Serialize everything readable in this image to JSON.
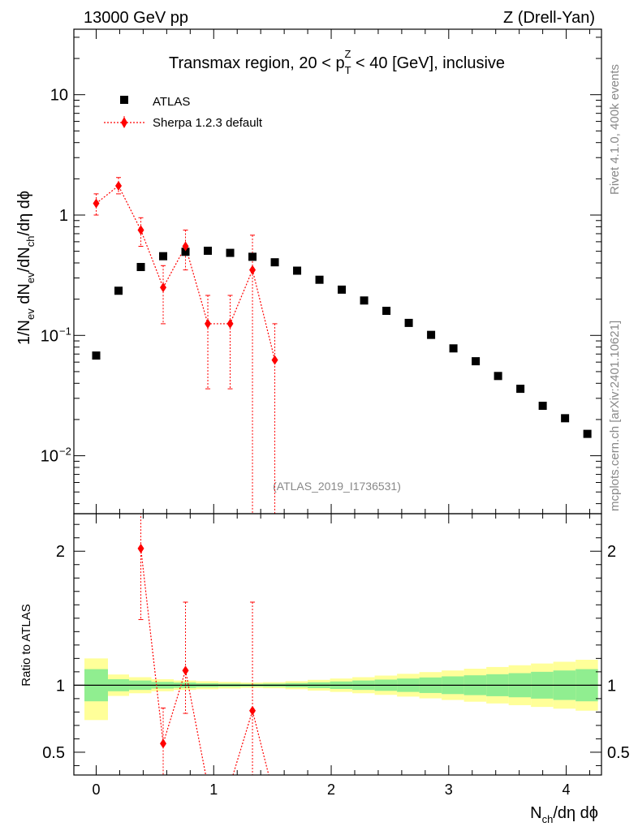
{
  "header": {
    "left": "13000 GeV pp",
    "right": "Z (Drell-Yan)"
  },
  "side_text": {
    "rivet": "Rivet 4.1.0,  400k events",
    "mcplots": "mcplots.cern.ch [arXiv:2401.10621]"
  },
  "analysis_id": "(ATLAS_2019_I1736531)",
  "title": {
    "pre": "Transmax region, 20 < p",
    "sub": "T",
    "sup": "Z",
    "post": " < 40 [GeV], inclusive"
  },
  "axes": {
    "ylabel_main": "1/N_ev dN_ev/dN_ch/dη dϕ",
    "ylabel_main_parts": [
      "1/N",
      "ev",
      " dN",
      "ev",
      "/dN",
      "ch",
      "/dη dϕ"
    ],
    "ylabel_ratio": "Ratio to ATLAS",
    "xlabel": "N_ch/dη dϕ",
    "xlabel_parts": [
      "N",
      "ch",
      "/dη dϕ"
    ]
  },
  "chart_data": {
    "type": "scatter",
    "x_range": [
      -0.19,
      4.3
    ],
    "main": {
      "yscale": "log",
      "ylim": [
        0.0033,
        35
      ],
      "y_ticks": [
        {
          "value": 10,
          "label": "10"
        },
        {
          "value": 1,
          "label": "1"
        },
        {
          "value": 0.1,
          "label": "10",
          "exp": "−1"
        },
        {
          "value": 0.01,
          "label": "10",
          "exp": "−2"
        }
      ]
    },
    "ratio": {
      "ylim": [
        0.33,
        2.28
      ],
      "y_ticks": [
        0.5,
        1,
        2
      ],
      "y_tick_labels": [
        "0.5",
        "1",
        "2"
      ]
    },
    "x_ticks": [
      0,
      1,
      2,
      3,
      4
    ],
    "x_tick_labels": [
      "0",
      "1",
      "2",
      "3",
      "4"
    ],
    "legend": {
      "placement": "top-left",
      "entries": [
        "ATLAS",
        "Sherpa 1.2.3 default"
      ]
    },
    "atlas": {
      "name": "ATLAS",
      "color": "#000000",
      "x": [
        0.0,
        0.19,
        0.38,
        0.57,
        0.76,
        0.95,
        1.14,
        1.33,
        1.52,
        1.71,
        1.9,
        2.09,
        2.28,
        2.47,
        2.66,
        2.85,
        3.04,
        3.23,
        3.42,
        3.61,
        3.8,
        3.99,
        4.18
      ],
      "y": [
        0.068,
        0.235,
        0.37,
        0.455,
        0.495,
        0.505,
        0.485,
        0.45,
        0.405,
        0.345,
        0.29,
        0.24,
        0.195,
        0.16,
        0.127,
        0.101,
        0.078,
        0.061,
        0.046,
        0.036,
        0.026,
        0.0205,
        0.0152
      ]
    },
    "sherpa": {
      "name": "Sherpa 1.2.3 default",
      "color": "#ff0000",
      "x": [
        0.0,
        0.19,
        0.38,
        0.57,
        0.76,
        0.95,
        1.14,
        1.33,
        1.52
      ],
      "y": [
        1.25,
        1.75,
        0.75,
        0.25,
        0.55,
        0.125,
        0.125,
        0.35,
        0.0625
      ],
      "y_low": [
        1.0,
        1.5,
        0.55,
        0.125,
        0.35,
        0.036,
        0.036,
        0.001,
        0.001
      ],
      "y_high": [
        1.5,
        2.05,
        0.95,
        0.38,
        0.75,
        0.215,
        0.215,
        0.68,
        0.125
      ],
      "ratio_x": [
        0.38,
        0.57,
        0.76,
        1.33
      ],
      "ratio_y": [
        2.02,
        0.565,
        1.11,
        0.81
      ],
      "ratio_low": [
        1.49,
        0.28,
        0.79,
        0.1
      ],
      "ratio_high": [
        2.6,
        0.83,
        1.62,
        1.62
      ],
      "ratio_line_x": [
        0.38,
        0.57,
        0.76,
        0.95,
        1.14,
        1.33,
        1.52
      ],
      "ratio_line_y": [
        2.02,
        0.565,
        1.11,
        0.25,
        0.26,
        0.81,
        0.15
      ]
    },
    "uncertainty_band": {
      "x_edges": [
        -0.1,
        0.1,
        0.28,
        0.47,
        0.66,
        0.85,
        1.04,
        1.23,
        1.42,
        1.61,
        1.8,
        1.99,
        2.18,
        2.37,
        2.56,
        2.75,
        2.94,
        3.13,
        3.32,
        3.51,
        3.7,
        3.89,
        4.08,
        4.27
      ],
      "inner_low": [
        0.88,
        0.955,
        0.965,
        0.975,
        0.98,
        0.985,
        0.988,
        0.99,
        0.988,
        0.984,
        0.978,
        0.972,
        0.965,
        0.958,
        0.95,
        0.942,
        0.934,
        0.926,
        0.918,
        0.91,
        0.9,
        0.89,
        0.88
      ],
      "inner_high": [
        1.12,
        1.045,
        1.035,
        1.025,
        1.02,
        1.015,
        1.012,
        1.01,
        1.012,
        1.016,
        1.022,
        1.028,
        1.035,
        1.042,
        1.05,
        1.058,
        1.066,
        1.074,
        1.082,
        1.09,
        1.1,
        1.11,
        1.12
      ],
      "outer_low": [
        0.74,
        0.92,
        0.94,
        0.955,
        0.965,
        0.97,
        0.975,
        0.98,
        0.977,
        0.97,
        0.96,
        0.95,
        0.94,
        0.928,
        0.915,
        0.902,
        0.89,
        0.877,
        0.864,
        0.851,
        0.838,
        0.825,
        0.81
      ],
      "outer_high": [
        1.2,
        1.08,
        1.06,
        1.045,
        1.035,
        1.03,
        1.025,
        1.02,
        1.023,
        1.03,
        1.04,
        1.05,
        1.06,
        1.072,
        1.085,
        1.098,
        1.11,
        1.123,
        1.136,
        1.149,
        1.162,
        1.175,
        1.19
      ],
      "inner_color": "#90ee90",
      "outer_color": "#ffff99"
    }
  }
}
